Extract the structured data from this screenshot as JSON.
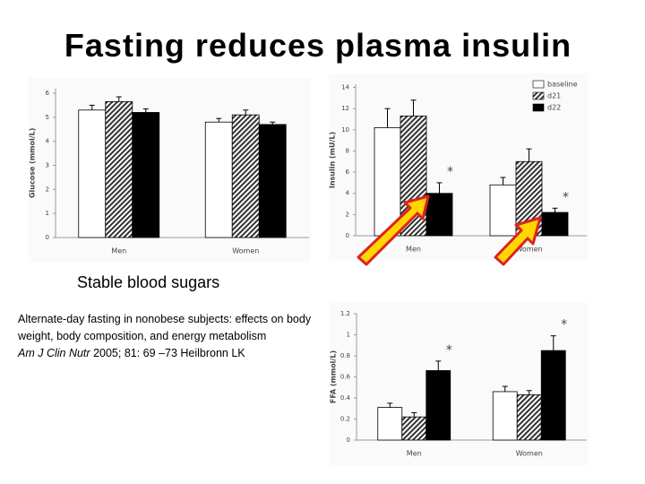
{
  "slide": {
    "title": "Fasting reduces plasma insulin",
    "caption": "Stable blood sugars",
    "citation": {
      "title": "Alternate-day fasting in nonobese subjects: effects on body weight, body composition, and energy metabolism",
      "journal": "Am J Clin Nutr",
      "details": "2005; 81: 69 –73 Heilbronn LK"
    }
  },
  "chart_data": [
    {
      "type": "bar",
      "y_label": "Glucose (mmol/L)",
      "categories": [
        "Men",
        "Women"
      ],
      "ylim": [
        0,
        6.2
      ],
      "yticks": [
        0,
        1,
        2,
        3,
        4,
        5,
        6
      ],
      "series": [
        {
          "color": "#ffffff",
          "values": [
            5.3,
            4.8
          ],
          "errors": [
            0.2,
            0.15
          ]
        },
        {
          "color": "#333333",
          "pattern": "hatch",
          "values": [
            5.65,
            5.1
          ],
          "errors": [
            0.2,
            0.2
          ]
        },
        {
          "color": "#000000",
          "values": [
            5.2,
            4.7
          ],
          "errors": [
            0.15,
            0.1
          ]
        }
      ]
    },
    {
      "type": "bar",
      "y_label": "Insulin (mU/L)",
      "categories": [
        "Men",
        "Women"
      ],
      "ylim": [
        0,
        14.3
      ],
      "yticks": [
        0,
        2,
        4,
        6,
        8,
        10,
        12,
        14
      ],
      "legend": "top-right",
      "annotations": [
        "*",
        "*"
      ],
      "series": [
        {
          "name": "baseline",
          "color": "#ffffff",
          "values": [
            10.2,
            4.8
          ],
          "errors": [
            1.8,
            0.7
          ]
        },
        {
          "name": "d21",
          "color": "#333333",
          "pattern": "hatch",
          "values": [
            11.3,
            7.0
          ],
          "errors": [
            1.5,
            1.2
          ]
        },
        {
          "name": "d22",
          "color": "#000000",
          "values": [
            4.0,
            2.2
          ],
          "errors": [
            1.0,
            0.4
          ]
        }
      ]
    },
    {
      "type": "bar",
      "y_label": "FFA (mmol/L)",
      "categories": [
        "Men",
        "Women"
      ],
      "ylim": [
        0,
        1.2
      ],
      "yticks": [
        0,
        0.2,
        0.4,
        0.6,
        0.8,
        1,
        1.2
      ],
      "annotations": [
        "*",
        "*"
      ],
      "series": [
        {
          "color": "#ffffff",
          "values": [
            0.31,
            0.46
          ],
          "errors": [
            0.04,
            0.05
          ]
        },
        {
          "color": "#333333",
          "pattern": "hatch",
          "values": [
            0.22,
            0.43
          ],
          "errors": [
            0.04,
            0.04
          ]
        },
        {
          "color": "#000000",
          "values": [
            0.66,
            0.85
          ],
          "errors": [
            0.09,
            0.14
          ]
        }
      ]
    }
  ]
}
